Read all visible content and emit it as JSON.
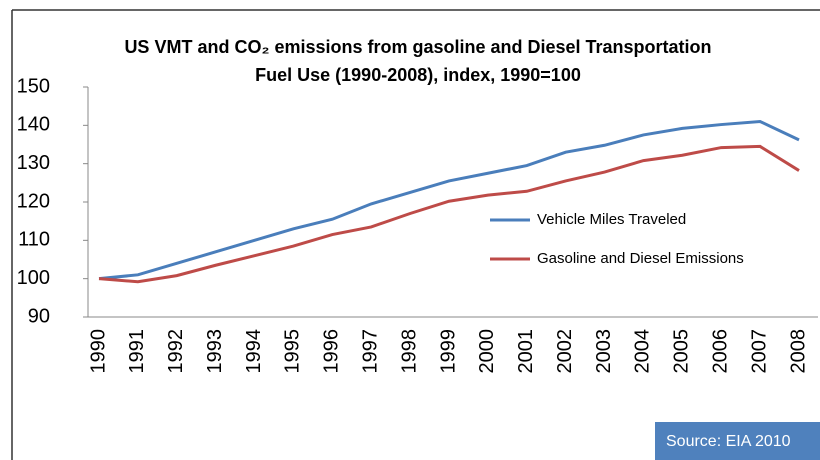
{
  "chart_data": {
    "type": "line",
    "title": [
      "US VMT and CO₂ emissions from gasoline and Diesel Transportation",
      "Fuel  Use (1990-2008), index, 1990=100"
    ],
    "categories": [
      "1990",
      "1991",
      "1992",
      "1993",
      "1994",
      "1995",
      "1996",
      "1997",
      "1998",
      "1999",
      "2000",
      "2001",
      "2002",
      "2003",
      "2004",
      "2005",
      "2006",
      "2007",
      "2008"
    ],
    "series": [
      {
        "name": "Vehicle Miles Traveled",
        "color": "#4a7ebb",
        "values": [
          100,
          101,
          104,
          107,
          110,
          113,
          115.5,
          119.5,
          122.5,
          125.5,
          127.5,
          129.5,
          133,
          134.8,
          137.5,
          139.2,
          140.2,
          141,
          136.2
        ]
      },
      {
        "name": "Gasoline and Diesel Emissions",
        "color": "#be4b48",
        "values": [
          100,
          99.2,
          100.8,
          103.5,
          106,
          108.5,
          111.5,
          113.5,
          117,
          120.2,
          121.8,
          122.8,
          125.5,
          127.8,
          130.8,
          132.2,
          134.2,
          134.5,
          128.2
        ]
      }
    ],
    "ylim": [
      90,
      150
    ],
    "yticks": [
      90,
      100,
      110,
      120,
      130,
      140,
      150
    ],
    "grid": false,
    "source": "Source: EIA 2010"
  }
}
